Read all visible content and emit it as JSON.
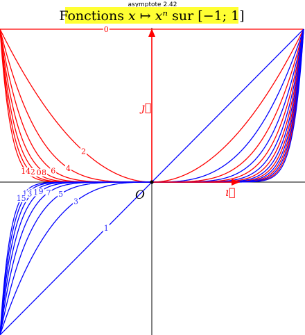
{
  "header": {
    "caption": "asymptote 2.42"
  },
  "title": {
    "prefix": "Fonctions ",
    "math": "x ↦ xⁿ",
    "middle": " sur ",
    "interval": "[−1; 1]"
  },
  "axes": {
    "origin_label": "O",
    "i_label": "ı⃗",
    "j_label": "ȷ⃗"
  },
  "colors": {
    "even_curves": "#ff0000",
    "odd_curves": "#0000ff",
    "axes_accent": "#ff0000",
    "title_background": "#ffff33"
  },
  "chart_data": {
    "type": "line",
    "title": "Fonctions x ↦ xⁿ sur [−1; 1]",
    "xlim": [
      -1,
      1
    ],
    "ylim": [
      -1,
      1
    ],
    "function": "x^n",
    "grid": false,
    "legend": "none",
    "even_exponents": [
      0,
      2,
      4,
      6,
      8,
      10,
      12,
      14
    ],
    "odd_exponents": [
      1,
      3,
      5,
      7,
      9,
      11,
      13,
      15
    ],
    "even_labels": [
      "0",
      "2",
      "4",
      "6",
      "8",
      "10",
      "12",
      "14"
    ],
    "odd_labels": [
      "1",
      "3",
      "5",
      "7",
      "9",
      "11",
      "13",
      "15"
    ],
    "series_note_visible": false
  }
}
